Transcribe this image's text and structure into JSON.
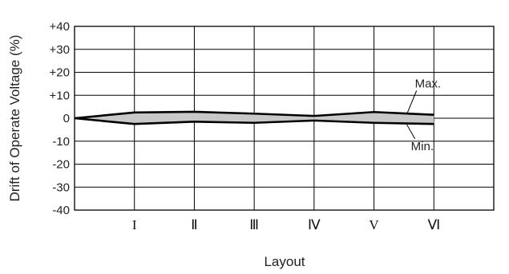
{
  "chart_data": {
    "type": "area",
    "title": "",
    "xlabel": "Layout",
    "ylabel": "Drift of Operate Voltage (%)",
    "ylim": [
      -40,
      40
    ],
    "y_ticks": [
      40,
      30,
      20,
      10,
      0,
      -10,
      -20,
      -30,
      -40
    ],
    "y_tick_labels": [
      "+40",
      "+30",
      "+20",
      "+10",
      "0",
      "-10",
      "-20",
      "-30",
      "-40"
    ],
    "categories": [
      "",
      "I",
      "II",
      "III",
      "IV",
      "V",
      "VI"
    ],
    "category_labels": [
      "",
      "I",
      "Ⅱ",
      "Ⅲ",
      "Ⅳ",
      "V",
      "Ⅵ"
    ],
    "grid": true,
    "series": [
      {
        "name": "Max.",
        "values": [
          0,
          2.5,
          2.8,
          2.0,
          1.0,
          2.7,
          1.5
        ]
      },
      {
        "name": "Min.",
        "values": [
          0,
          -2.5,
          -1.5,
          -2.0,
          -1.0,
          -2.0,
          -2.5
        ]
      }
    ],
    "annotations": [
      {
        "text": "Max.",
        "series": "Max."
      },
      {
        "text": "Min.",
        "series": "Min."
      }
    ],
    "band_fill": "#c8c8c8",
    "line_color": "#000000"
  }
}
